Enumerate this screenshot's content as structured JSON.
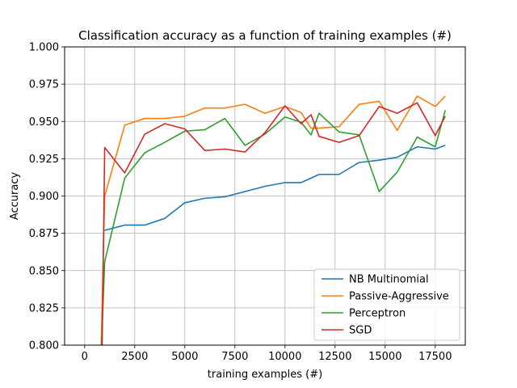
{
  "chart_data": {
    "type": "line",
    "title": "Classification accuracy as a function of training examples (#)",
    "xlabel": "training examples (#)",
    "ylabel": "Accuracy",
    "xlim": [
      -1000,
      19000
    ],
    "ylim": [
      0.8,
      1.0
    ],
    "xticks": [
      0,
      2500,
      5000,
      7500,
      10000,
      12500,
      15000,
      17500
    ],
    "xtick_labels": [
      "0",
      "2500",
      "5000",
      "7500",
      "10000",
      "12500",
      "15000",
      "17500"
    ],
    "yticks": [
      0.8,
      0.825,
      0.85,
      0.875,
      0.9,
      0.925,
      0.95,
      0.975,
      1.0
    ],
    "ytick_labels": [
      "0.800",
      "0.825",
      "0.850",
      "0.875",
      "0.900",
      "0.925",
      "0.950",
      "0.975",
      "1.000"
    ],
    "grid": true,
    "legend_position": "lower-right",
    "series": [
      {
        "name": "NB Multinomial",
        "color": "#1f77b4",
        "x": [
          1000,
          2000,
          3000,
          4000,
          5000,
          6000,
          7000,
          8000,
          9000,
          10000,
          10800,
          11300,
          11700,
          12700,
          13700,
          14700,
          15600,
          16600,
          17500,
          18000
        ],
        "y": [
          0.877,
          0.8805,
          0.8805,
          0.885,
          0.8955,
          0.8985,
          0.8995,
          0.903,
          0.9065,
          0.909,
          0.909,
          0.912,
          0.9145,
          0.9145,
          0.9225,
          0.924,
          0.926,
          0.933,
          0.9315,
          0.934
        ]
      },
      {
        "name": "Passive-Aggressive",
        "color": "#ff7f0e",
        "x": [
          820,
          1000,
          2000,
          3000,
          4000,
          5000,
          6000,
          7000,
          8000,
          9000,
          10000,
          10800,
          11300,
          11700,
          12700,
          13700,
          14700,
          15600,
          16600,
          17500,
          18000
        ],
        "y": [
          0.797,
          0.9,
          0.9475,
          0.952,
          0.952,
          0.9535,
          0.959,
          0.959,
          0.9615,
          0.9555,
          0.96,
          0.956,
          0.9455,
          0.9455,
          0.9465,
          0.9615,
          0.9635,
          0.944,
          0.967,
          0.96,
          0.967
        ]
      },
      {
        "name": "Perceptron",
        "color": "#2ca02c",
        "x": [
          830,
          1000,
          2000,
          3000,
          4000,
          5000,
          6000,
          7000,
          8000,
          9000,
          10000,
          10800,
          11300,
          11700,
          12700,
          13700,
          14700,
          15600,
          16600,
          17500,
          18000
        ],
        "y": [
          0.797,
          0.856,
          0.912,
          0.929,
          0.936,
          0.9435,
          0.9445,
          0.952,
          0.934,
          0.9415,
          0.953,
          0.9495,
          0.941,
          0.9555,
          0.943,
          0.941,
          0.903,
          0.916,
          0.9395,
          0.933,
          0.9575
        ]
      },
      {
        "name": "SGD",
        "color": "#d62728",
        "x": [
          870,
          1000,
          2000,
          3000,
          4000,
          5000,
          6000,
          7000,
          8000,
          9000,
          10000,
          10800,
          11300,
          11700,
          12700,
          13700,
          14700,
          15600,
          16600,
          17500,
          18000
        ],
        "y": [
          0.797,
          0.9325,
          0.9155,
          0.9415,
          0.9485,
          0.945,
          0.9305,
          0.9315,
          0.9295,
          0.9425,
          0.9605,
          0.9485,
          0.9545,
          0.94,
          0.936,
          0.9405,
          0.96,
          0.9555,
          0.9625,
          0.9405,
          0.9535
        ]
      }
    ]
  }
}
